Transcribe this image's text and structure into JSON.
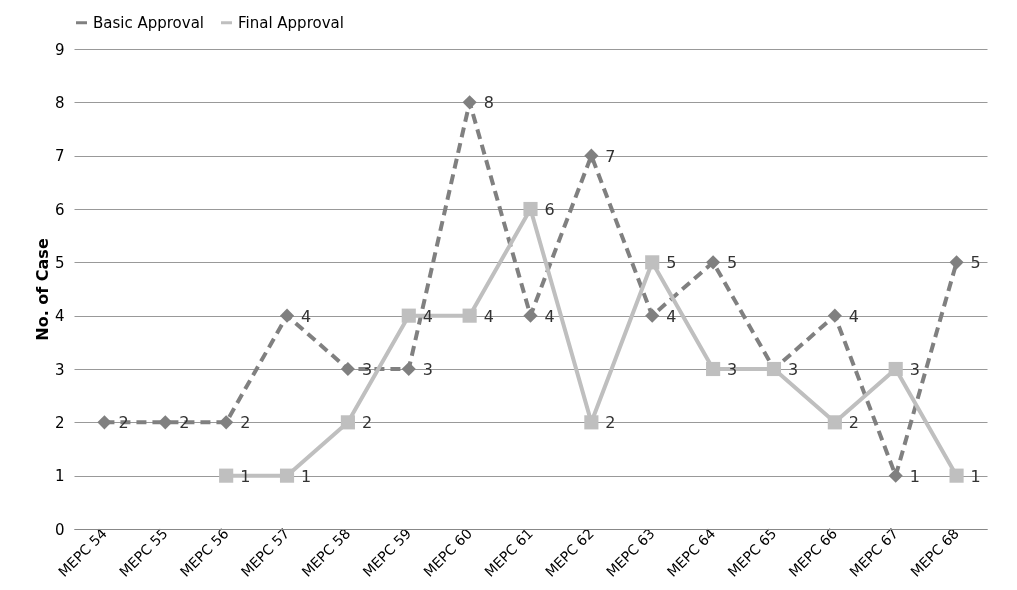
{
  "chart_data": {
    "type": "line",
    "ylabel": "No. of Case",
    "categories": [
      "MEPC 54",
      "MEPC 55",
      "MEPC 56",
      "MEPC 57",
      "MEPC 58",
      "MEPC 59",
      "MEPC 60",
      "MEPC 61",
      "MEPC 62",
      "MEPC 63",
      "MEPC 64",
      "MEPC 65",
      "MEPC 66",
      "MEPC 67",
      "MEPC 68"
    ],
    "series": [
      {
        "name": "Basic Approval",
        "color": "#808080",
        "marker": "diamond",
        "line_style": "dashed",
        "values": [
          2,
          2,
          2,
          4,
          3,
          3,
          8,
          4,
          7,
          4,
          5,
          3,
          4,
          1,
          5
        ]
      },
      {
        "name": "Final Approval",
        "color": "#bfbfbf",
        "marker": "square",
        "line_style": "solid",
        "values": [
          null,
          null,
          1,
          1,
          2,
          4,
          4,
          6,
          2,
          5,
          3,
          3,
          2,
          3,
          1
        ],
        "value_labels": [
          null,
          null,
          "1",
          "1",
          "2",
          "4",
          "4",
          "6",
          "2",
          "5",
          "3",
          null,
          "2",
          "3",
          "1"
        ]
      }
    ],
    "ylim": [
      0,
      9
    ],
    "yticks": [
      0,
      1,
      2,
      3,
      4,
      5,
      6,
      7,
      8,
      9
    ],
    "grid": "y",
    "legend": "top",
    "data_labels": true
  }
}
